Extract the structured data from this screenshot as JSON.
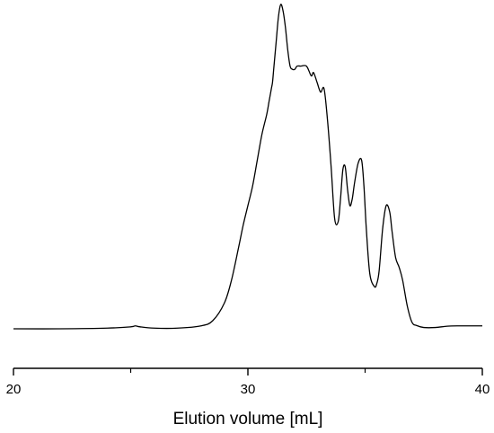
{
  "chart_data": {
    "type": "line",
    "xlabel": "Elution volume [mL]",
    "ylabel": "",
    "xlim": [
      20,
      40
    ],
    "ylim": [
      0,
      1
    ],
    "x_ticks": [
      20,
      30,
      40
    ],
    "x_minor_ticks": [
      25,
      35
    ],
    "y_axis_visible": false,
    "grid": false,
    "series": [
      {
        "color": "#000000",
        "x": [
          20.0,
          22.0,
          24.0,
          25.0,
          25.2,
          25.4,
          26.0,
          27.0,
          28.0,
          28.5,
          29.0,
          29.3,
          29.6,
          29.8,
          30.0,
          30.2,
          30.4,
          30.6,
          30.8,
          30.9,
          31.0,
          31.05,
          31.1,
          31.2,
          31.3,
          31.4,
          31.5,
          31.6,
          31.7,
          31.8,
          31.9,
          32.0,
          32.1,
          32.25,
          32.5,
          32.7,
          32.8,
          32.95,
          33.1,
          33.25,
          33.4,
          33.55,
          33.7,
          33.85,
          33.95,
          34.05,
          34.15,
          34.25,
          34.35,
          34.45,
          34.55,
          34.7,
          34.85,
          34.95,
          35.05,
          35.2,
          35.4,
          35.5,
          35.6,
          35.75,
          35.9,
          36.05,
          36.15,
          36.3,
          36.45,
          36.6,
          36.8,
          37.0,
          37.2,
          37.5,
          38.0,
          38.5,
          39.0,
          40.0
        ],
        "y": [
          0.0,
          0.0,
          0.002,
          0.006,
          0.009,
          0.006,
          0.002,
          0.002,
          0.009,
          0.025,
          0.08,
          0.15,
          0.25,
          0.32,
          0.38,
          0.44,
          0.52,
          0.6,
          0.66,
          0.7,
          0.74,
          0.76,
          0.8,
          0.88,
          0.96,
          1.0,
          0.98,
          0.93,
          0.86,
          0.81,
          0.8,
          0.8,
          0.81,
          0.81,
          0.81,
          0.78,
          0.79,
          0.76,
          0.73,
          0.74,
          0.64,
          0.5,
          0.34,
          0.33,
          0.4,
          0.49,
          0.5,
          0.43,
          0.38,
          0.4,
          0.45,
          0.51,
          0.52,
          0.44,
          0.31,
          0.17,
          0.13,
          0.14,
          0.18,
          0.31,
          0.38,
          0.36,
          0.3,
          0.22,
          0.19,
          0.15,
          0.07,
          0.02,
          0.01,
          0.004,
          0.004,
          0.008,
          0.009,
          0.009
        ]
      }
    ]
  }
}
